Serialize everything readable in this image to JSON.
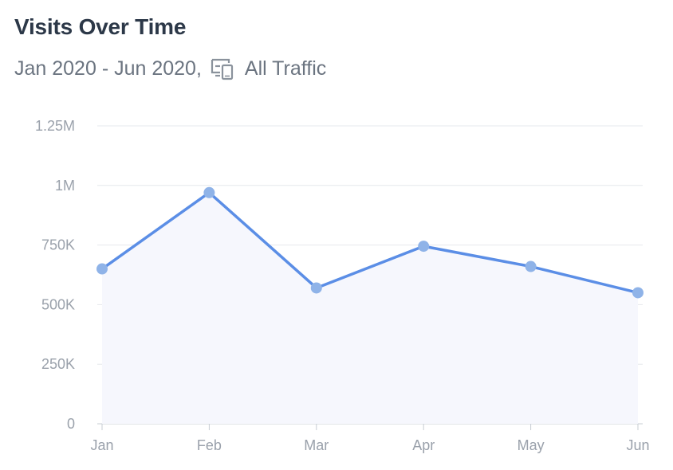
{
  "header": {
    "title": "Visits Over Time",
    "date_range": "Jan 2020 - Jun 2020,",
    "segment": "All Traffic"
  },
  "icons": {
    "segment_icon": "devices-icon"
  },
  "colors": {
    "line": "#5b8ee6",
    "point": "#8fb3e8",
    "area": "#f6f7fd",
    "grid": "#e6e8ec",
    "axis": "#c7ccd3",
    "title": "#2c3848",
    "subtitle": "#6b7480",
    "tick": "#9aa1ab"
  },
  "chart_data": {
    "type": "area",
    "title": "Visits Over Time",
    "categories": [
      "Jan",
      "Feb",
      "Mar",
      "Apr",
      "May",
      "Jun"
    ],
    "series": [
      {
        "values": [
          650000,
          970000,
          570000,
          745000,
          660000,
          550000
        ]
      }
    ],
    "ylim": [
      0,
      1250000
    ],
    "y_ticks": [
      0,
      250000,
      500000,
      750000,
      1000000,
      1250000
    ],
    "y_tick_labels": [
      "0",
      "250K",
      "500K",
      "750K",
      "1M",
      "1.25M"
    ],
    "grid": true,
    "legend": "none"
  }
}
